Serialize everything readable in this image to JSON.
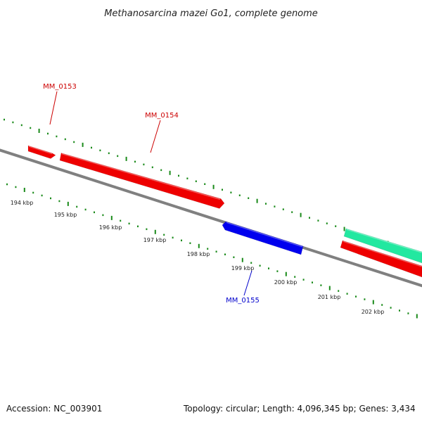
{
  "title": "Methanosarcina mazei Go1, complete genome",
  "footer": {
    "accession": "Accession: NC_003901",
    "summary": "Topology: circular; Length: 4,096,345 bp; Genes: 3,434"
  },
  "colors": {
    "forward_gene": "#ee0000",
    "reverse_gene": "#0000ee",
    "rna_gene": "#22e8a0",
    "backbone": "#808080",
    "ticks": "#1a8a1a",
    "label_forward": "#cc0000",
    "label_reverse": "#0000cc"
  },
  "scale_labels": [
    "194 kbp",
    "195 kbp",
    "196 kbp",
    "197 kbp",
    "198 kbp",
    "199 kbp",
    "200 kbp",
    "201 kbp",
    "202 kbp"
  ],
  "genes": [
    {
      "label": "MM_0153",
      "strand": "forward"
    },
    {
      "label": "MM_0154",
      "strand": "forward"
    },
    {
      "label": "MM_0155",
      "strand": "reverse"
    },
    {
      "label": "",
      "strand": "forward"
    },
    {
      "label": "",
      "strand": "rna"
    }
  ]
}
